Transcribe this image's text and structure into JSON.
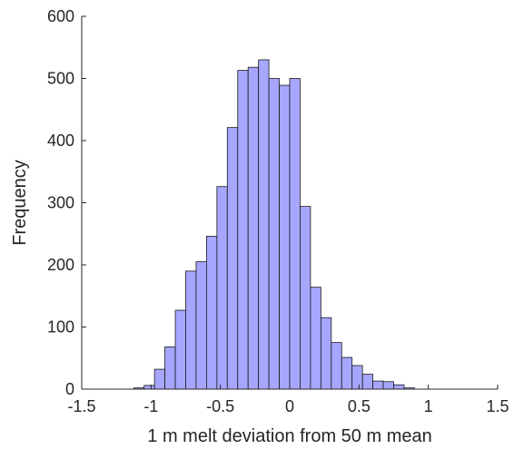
{
  "chart_data": {
    "type": "bar",
    "subtype": "histogram",
    "title": "",
    "xlabel": "1 m melt deviation from 50 m mean",
    "ylabel": "Frequency",
    "xlim": [
      -1.5,
      1.5
    ],
    "ylim": [
      0,
      600
    ],
    "x_ticks": [
      "-1.5",
      "-1",
      "-0.5",
      "0",
      "0.5",
      "1",
      "1.5"
    ],
    "y_ticks": [
      "0",
      "100",
      "200",
      "300",
      "400",
      "500",
      "600"
    ],
    "grid": false,
    "legend": "none",
    "bar_color": "#a6a6ff",
    "bar_edge_color": "#1a1a1a",
    "bins": [
      {
        "x0": -1.125,
        "x1": -1.05,
        "value": 2
      },
      {
        "x0": -1.05,
        "x1": -0.975,
        "value": 6
      },
      {
        "x0": -0.975,
        "x1": -0.9,
        "value": 32
      },
      {
        "x0": -0.9,
        "x1": -0.825,
        "value": 68
      },
      {
        "x0": -0.825,
        "x1": -0.75,
        "value": 127
      },
      {
        "x0": -0.75,
        "x1": -0.675,
        "value": 190
      },
      {
        "x0": -0.675,
        "x1": -0.6,
        "value": 205
      },
      {
        "x0": -0.6,
        "x1": -0.525,
        "value": 246
      },
      {
        "x0": -0.525,
        "x1": -0.45,
        "value": 326
      },
      {
        "x0": -0.45,
        "x1": -0.375,
        "value": 421
      },
      {
        "x0": -0.375,
        "x1": -0.3,
        "value": 513
      },
      {
        "x0": -0.3,
        "x1": -0.225,
        "value": 518
      },
      {
        "x0": -0.225,
        "x1": -0.15,
        "value": 530
      },
      {
        "x0": -0.15,
        "x1": -0.075,
        "value": 500
      },
      {
        "x0": -0.075,
        "x1": 0.0,
        "value": 489
      },
      {
        "x0": 0.0,
        "x1": 0.075,
        "value": 500
      },
      {
        "x0": 0.075,
        "x1": 0.15,
        "value": 294
      },
      {
        "x0": 0.15,
        "x1": 0.225,
        "value": 164
      },
      {
        "x0": 0.225,
        "x1": 0.3,
        "value": 115
      },
      {
        "x0": 0.3,
        "x1": 0.375,
        "value": 75
      },
      {
        "x0": 0.375,
        "x1": 0.45,
        "value": 51
      },
      {
        "x0": 0.45,
        "x1": 0.525,
        "value": 38
      },
      {
        "x0": 0.525,
        "x1": 0.6,
        "value": 24
      },
      {
        "x0": 0.6,
        "x1": 0.675,
        "value": 13
      },
      {
        "x0": 0.675,
        "x1": 0.75,
        "value": 12
      },
      {
        "x0": 0.75,
        "x1": 0.825,
        "value": 7
      },
      {
        "x0": 0.825,
        "x1": 0.9,
        "value": 2
      }
    ]
  }
}
